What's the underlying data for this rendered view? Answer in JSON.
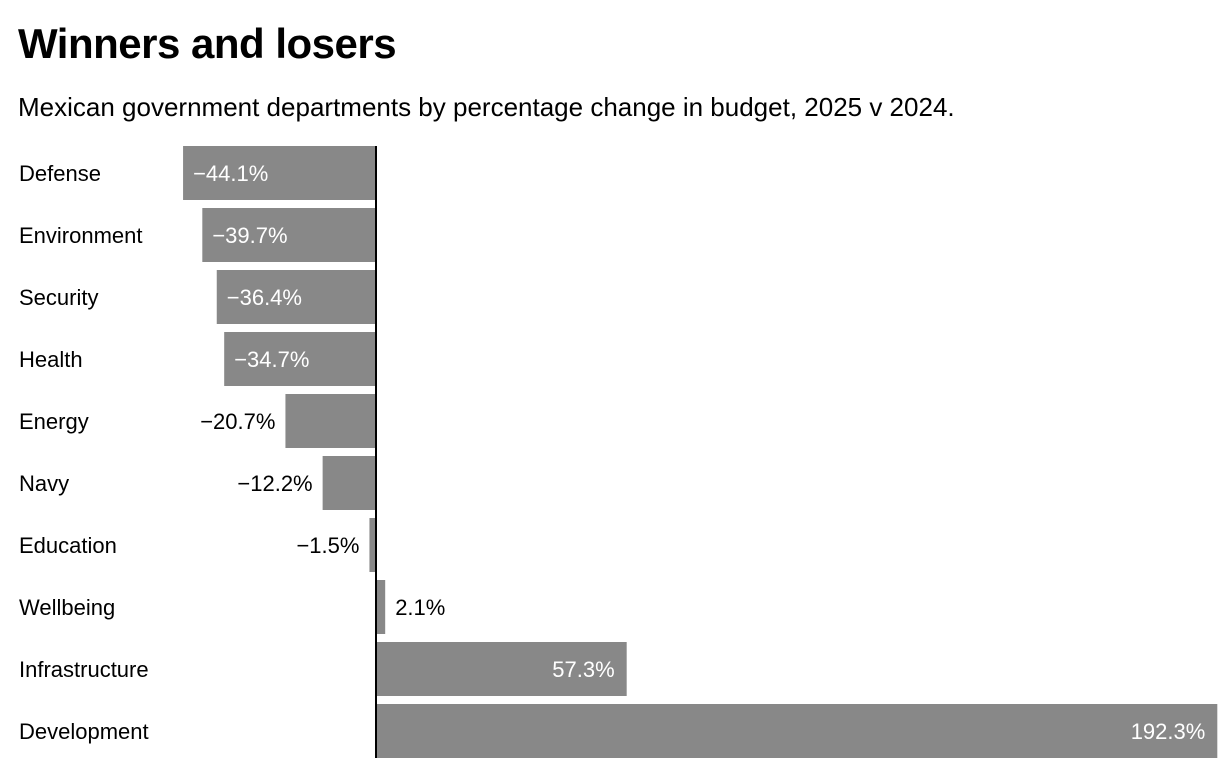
{
  "chart_data": {
    "type": "bar",
    "orientation": "horizontal",
    "title": "Winners and losers",
    "subtitle": "Mexican government departments by percentage change in budget, 2025 v 2024.",
    "categories": [
      "Defense",
      "Environment",
      "Security",
      "Health",
      "Energy",
      "Navy",
      "Education",
      "Wellbeing",
      "Infrastructure",
      "Development"
    ],
    "values": [
      -44.1,
      -39.7,
      -36.4,
      -34.7,
      -20.7,
      -12.2,
      -1.5,
      2.1,
      57.3,
      192.3
    ],
    "labels": [
      "−44.1%",
      "−39.7%",
      "−36.4%",
      "−34.7%",
      "−20.7%",
      "−12.2%",
      "−1.5%",
      "2.1%",
      "57.3%",
      "192.3%"
    ],
    "xlabel": "",
    "ylabel": "",
    "xlim": [
      -44.1,
      192.3
    ],
    "grid": false,
    "colors": {
      "bar": "#888888",
      "label_inside": "#ffffff",
      "label_outside": "#000000",
      "axis": "#000000"
    }
  }
}
